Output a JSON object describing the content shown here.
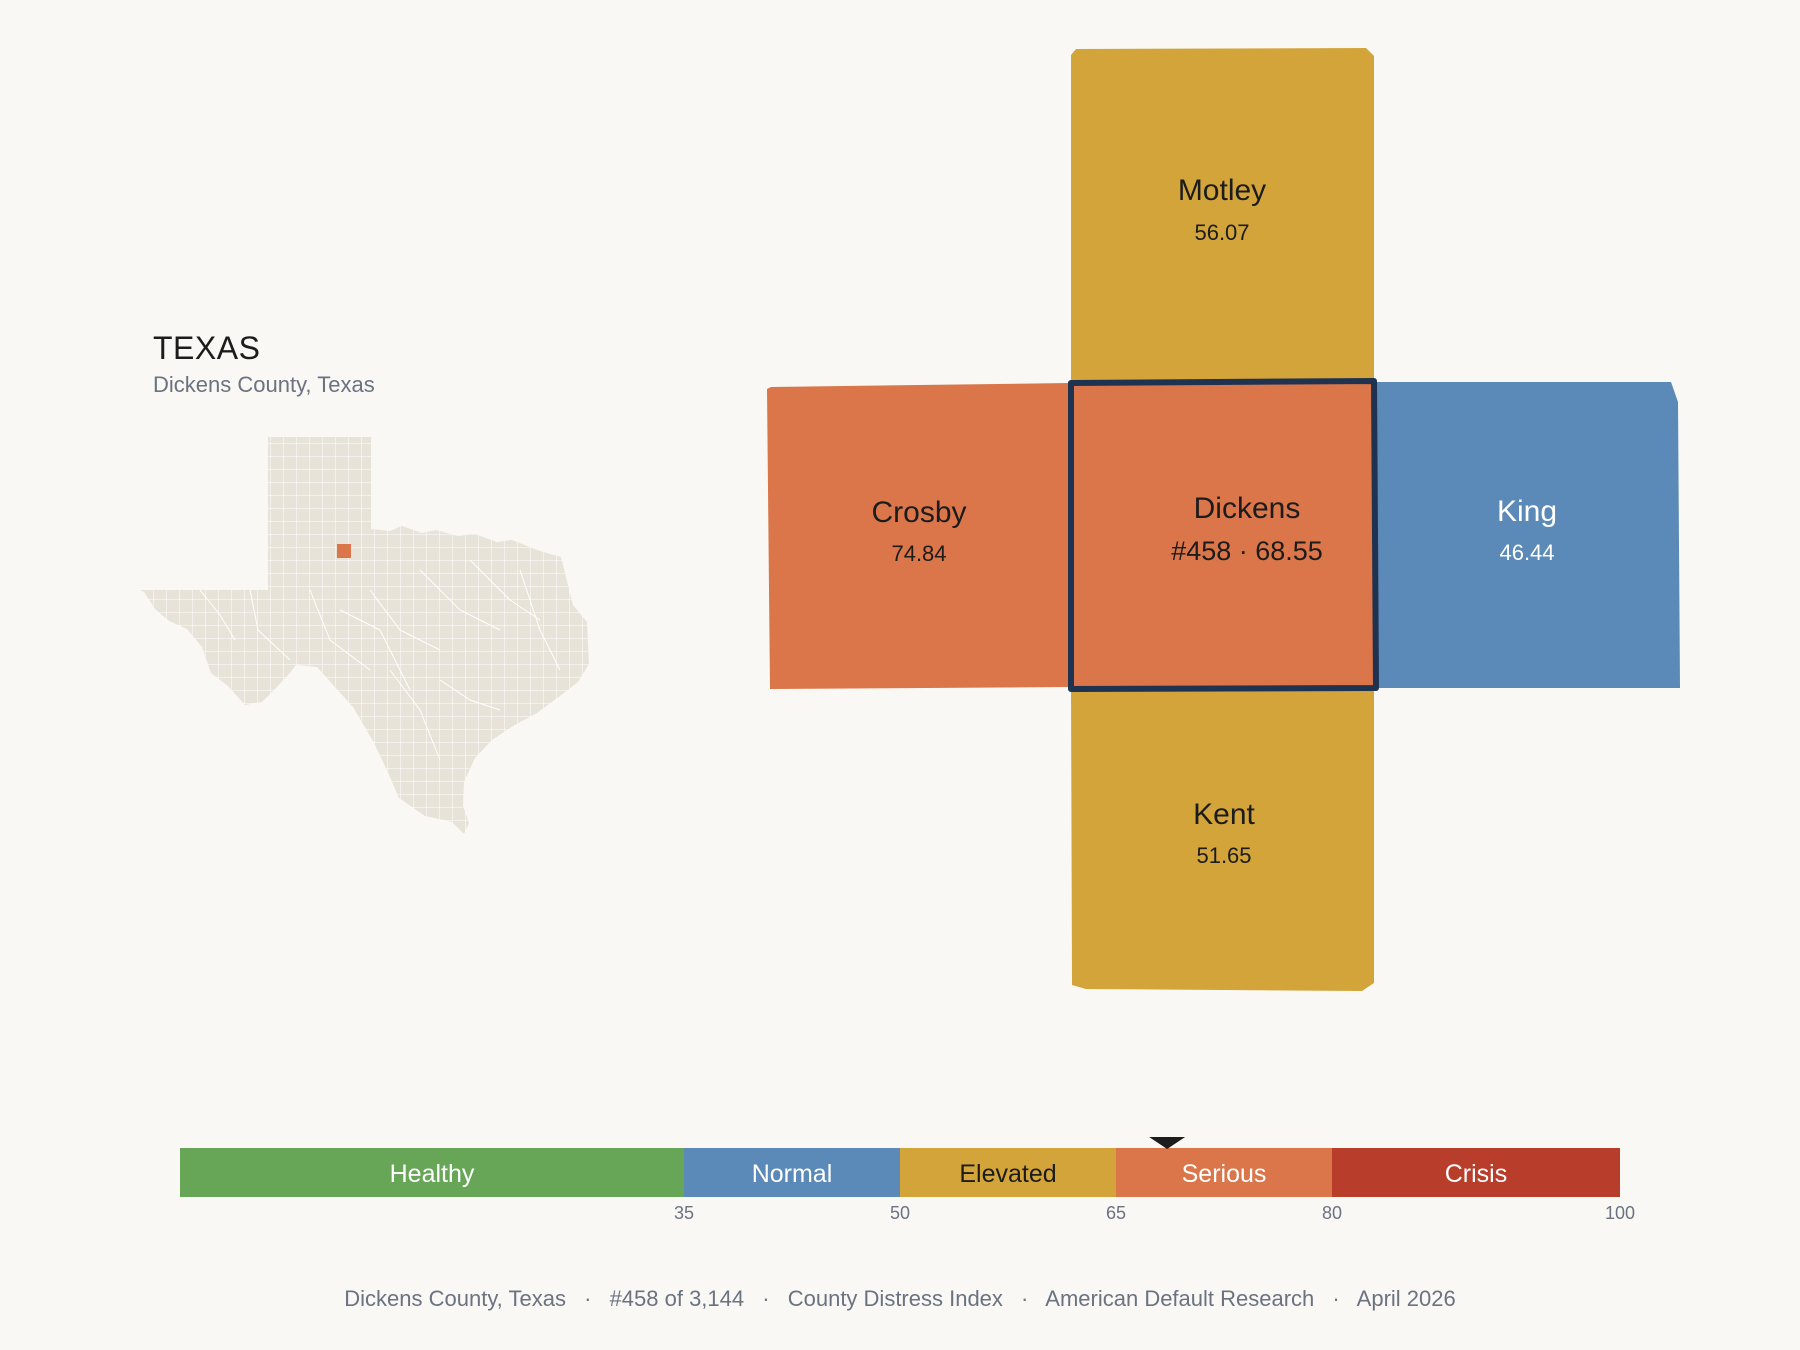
{
  "header": {
    "state": "TEXAS",
    "subtitle": "Dickens County, Texas"
  },
  "counties": {
    "focus": {
      "name": "Dickens",
      "rank_value": "#458 · 68.55",
      "score": 68.55,
      "tier": "Serious"
    },
    "north": {
      "name": "Motley",
      "value": "56.07",
      "tier": "Elevated"
    },
    "west": {
      "name": "Crosby",
      "value": "74.84",
      "tier": "Serious"
    },
    "east": {
      "name": "King",
      "value": "46.44",
      "tier": "Normal"
    },
    "south": {
      "name": "Kent",
      "value": "51.65",
      "tier": "Elevated"
    }
  },
  "colors": {
    "Healthy": "#67a657",
    "Normal": "#5b89b8",
    "Elevated": "#d3a43a",
    "Serious": "#da764a",
    "Crisis": "#b93d2b",
    "state_fill": "#e8e3d9",
    "focus_outline": "#1f3350"
  },
  "scale": {
    "segments": [
      {
        "label": "Healthy",
        "from": 0,
        "to": 35
      },
      {
        "label": "Normal",
        "from": 35,
        "to": 50
      },
      {
        "label": "Elevated",
        "from": 50,
        "to": 65
      },
      {
        "label": "Serious",
        "from": 65,
        "to": 80
      },
      {
        "label": "Crisis",
        "from": 80,
        "to": 100
      }
    ],
    "ticks": [
      "35",
      "50",
      "65",
      "80",
      "100"
    ],
    "marker_value": 68.55
  },
  "footer": {
    "location": "Dickens County, Texas",
    "rank": "#458 of 3,144",
    "index": "County Distress Index",
    "publisher": "American Default Research",
    "date": "April 2026",
    "separator": "·"
  }
}
